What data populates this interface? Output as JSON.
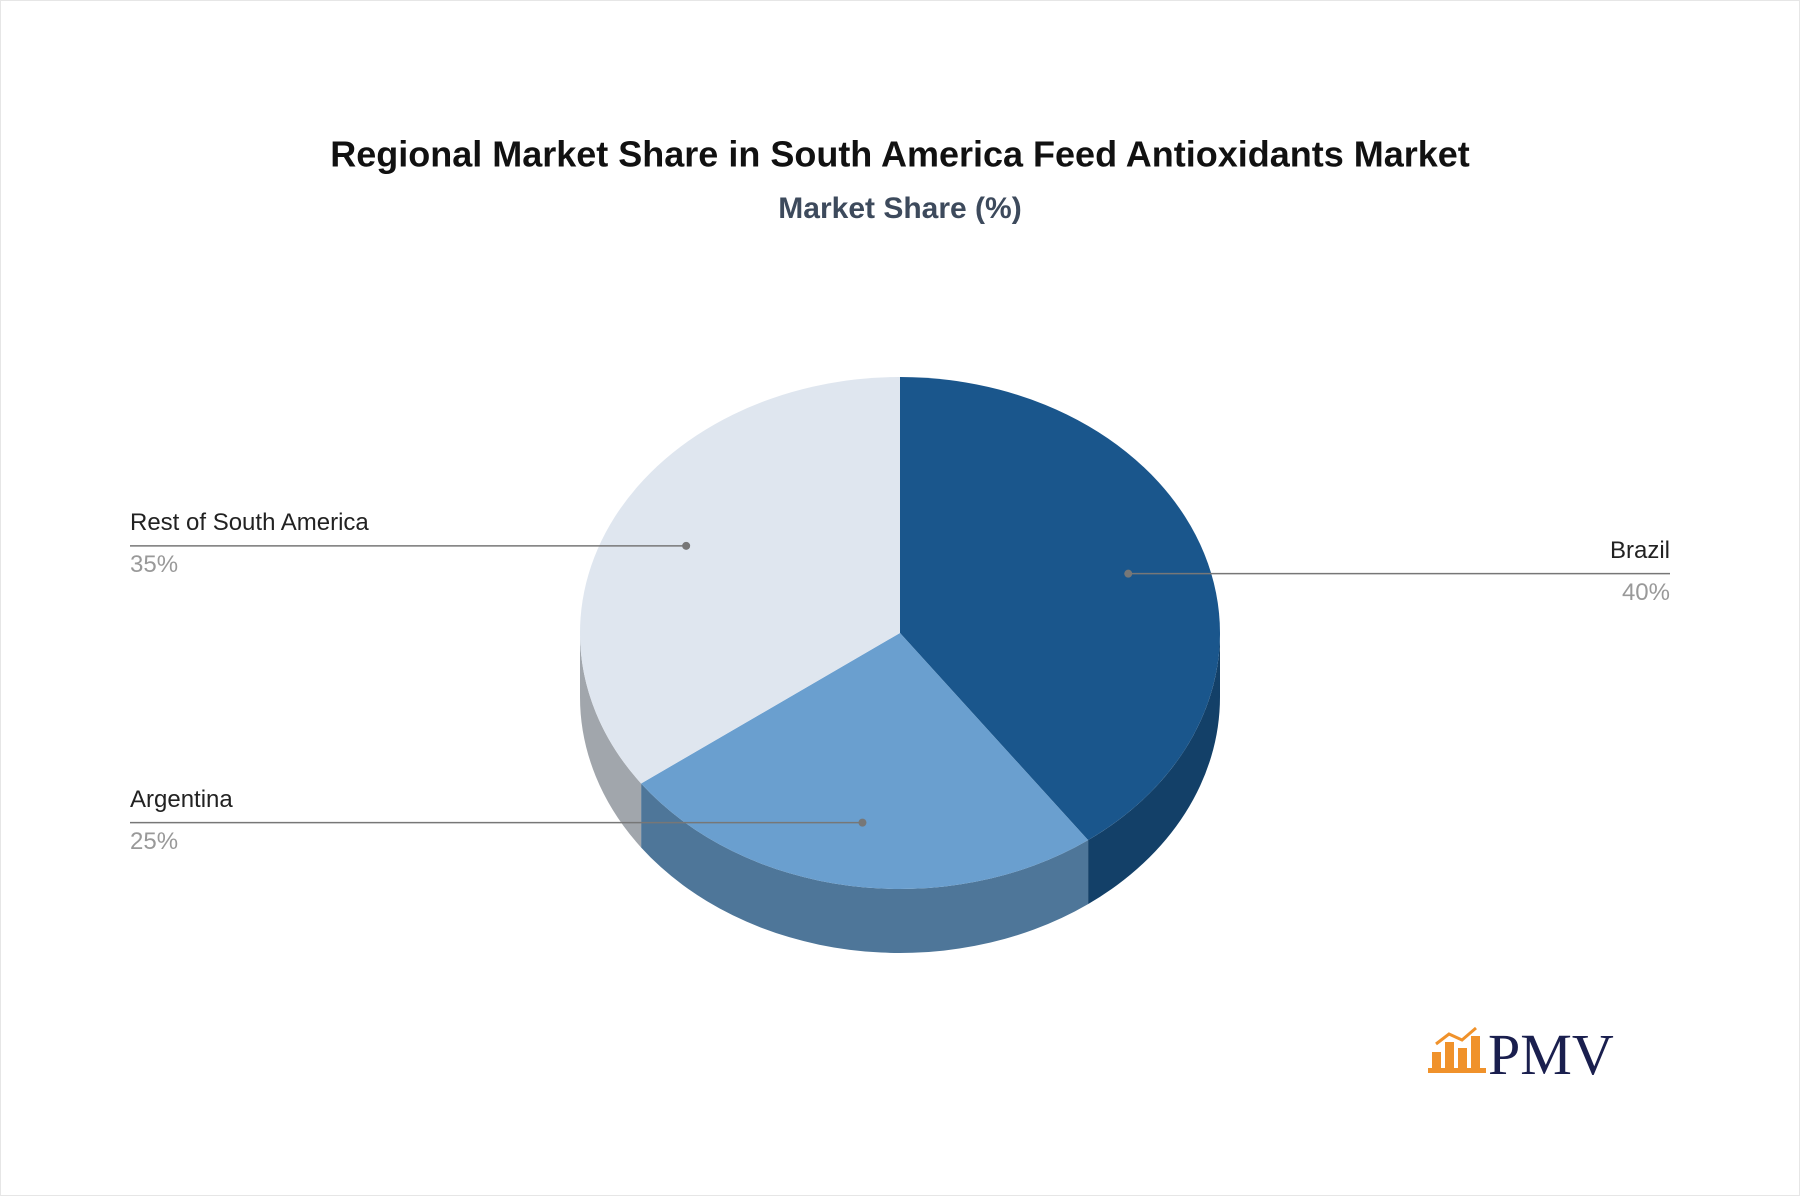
{
  "chart_data": {
    "type": "pie",
    "title": "Regional Market Share in South America Feed Antioxidants Market",
    "subtitle": "Market Share (%)",
    "categories": [
      "Brazil",
      "Argentina",
      "Rest of South America"
    ],
    "values": [
      40,
      25,
      35
    ],
    "value_labels": [
      "40%",
      "25%",
      "35%"
    ],
    "colors": [
      "#1a568c",
      "#6a9fcf",
      "#dfe6ef"
    ]
  },
  "logo": "PMV"
}
